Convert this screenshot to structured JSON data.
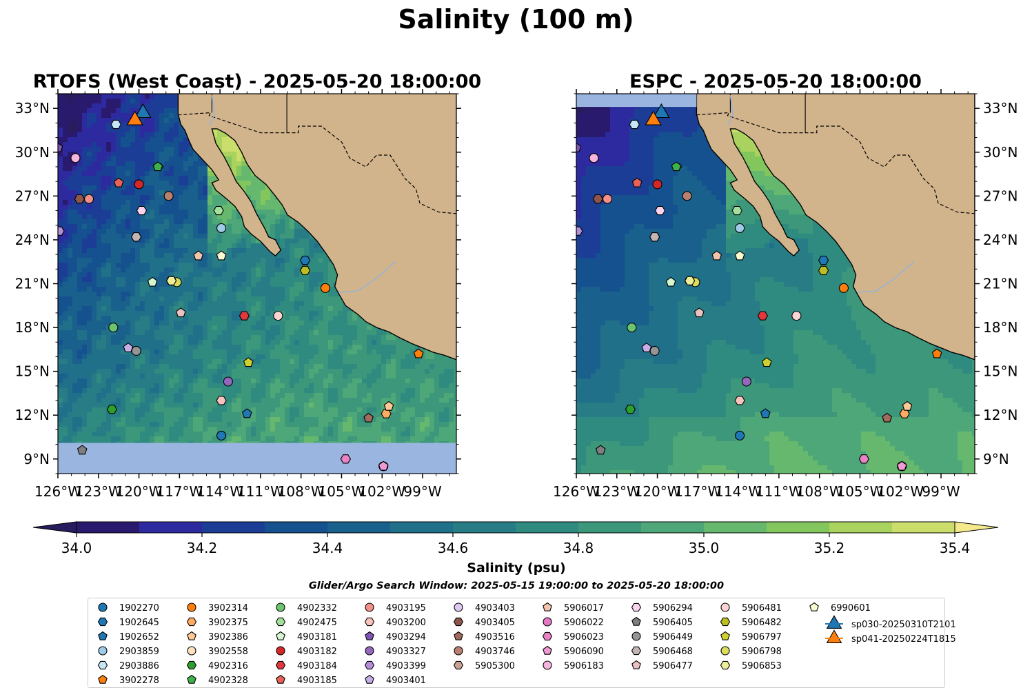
{
  "figure": {
    "suptitle": "Salinity (100 m)",
    "search_window": "Glider/Argo Search Window: 2025-05-15 19:00:00 to 2025-05-20 18:00:00"
  },
  "chart_data": [
    {
      "type": "heatmap",
      "title": "RTOFS (West Coast) - 2025-05-20 18:00:00",
      "xlabel": "",
      "ylabel": "",
      "xlim": [
        -126,
        -96.5
      ],
      "ylim": [
        8,
        34
      ],
      "x_ticks": [
        "126°W",
        "123°W",
        "120°W",
        "117°W",
        "114°W",
        "111°W",
        "108°W",
        "105°W",
        "102°W",
        "99°W"
      ],
      "y_ticks": [
        "9°N",
        "12°N",
        "15°N",
        "18°N",
        "21°N",
        "24°N",
        "27°N",
        "30°N",
        "33°N"
      ],
      "y_tick_side": "left",
      "no_data_band_lat_below": 10.1
    },
    {
      "type": "heatmap",
      "title": "ESPC - 2025-05-20 18:00:00",
      "xlabel": "",
      "ylabel": "",
      "xlim": [
        -126,
        -96.5
      ],
      "ylim": [
        8,
        34
      ],
      "x_ticks": [
        "126°W",
        "123°W",
        "120°W",
        "117°W",
        "114°W",
        "111°W",
        "108°W",
        "105°W",
        "102°W",
        "99°W"
      ],
      "y_ticks": [
        "9°N",
        "12°N",
        "15°N",
        "18°N",
        "21°N",
        "24°N",
        "27°N",
        "30°N",
        "33°N"
      ],
      "y_tick_side": "right",
      "no_data_band_lat_above": 33.1
    }
  ],
  "colorbar": {
    "label": "Salinity (psu)",
    "range": [
      34.0,
      35.4
    ],
    "extend": "both",
    "tick_labels": [
      "34.0",
      "34.2",
      "34.4",
      "34.6",
      "34.8",
      "35.0",
      "35.2",
      "35.4"
    ],
    "colors": [
      "#2a1a6e",
      "#2d2aa0",
      "#1c3d95",
      "#16518f",
      "#1a608c",
      "#21708a",
      "#287c86",
      "#2f8a80",
      "#3c977b",
      "#4ea778",
      "#66b86e",
      "#84c65e",
      "#a9d25e",
      "#cbde6c"
    ],
    "under_color": "#281b5e",
    "over_color": "#f4ea8c"
  },
  "map_colors": {
    "land": "#d2b48c",
    "no_data": "#9ab6e0",
    "coast": "#000000"
  },
  "legend": {
    "entries": [
      {
        "label": "1902270",
        "marker": "circle",
        "color": "#1f77b4"
      },
      {
        "label": "1902645",
        "marker": "hexagon",
        "color": "#1f77b4"
      },
      {
        "label": "1902652",
        "marker": "pentagon",
        "color": "#1f77b4"
      },
      {
        "label": "2903859",
        "marker": "circle",
        "color": "#9fcbe8"
      },
      {
        "label": "2903886",
        "marker": "hexagon",
        "color": "#c6e6f6"
      },
      {
        "label": "3902278",
        "marker": "pentagon",
        "color": "#ff7f0e"
      },
      {
        "label": "3902314",
        "marker": "circle",
        "color": "#ff7f0e"
      },
      {
        "label": "3902375",
        "marker": "hexagon",
        "color": "#ffac62"
      },
      {
        "label": "3902386",
        "marker": "pentagon",
        "color": "#ffc995"
      },
      {
        "label": "3902558",
        "marker": "circle",
        "color": "#ffe0c0"
      },
      {
        "label": "4902316",
        "marker": "hexagon",
        "color": "#2ca02c"
      },
      {
        "label": "4902328",
        "marker": "pentagon",
        "color": "#3fb14a"
      },
      {
        "label": "4902332",
        "marker": "circle",
        "color": "#6cc46f"
      },
      {
        "label": "4902475",
        "marker": "hexagon",
        "color": "#a3e09e"
      },
      {
        "label": "4903181",
        "marker": "pentagon",
        "color": "#d6f6cf"
      },
      {
        "label": "4903182",
        "marker": "circle",
        "color": "#d62728"
      },
      {
        "label": "4903184",
        "marker": "hexagon",
        "color": "#e0383c"
      },
      {
        "label": "4903185",
        "marker": "pentagon",
        "color": "#e8625a"
      },
      {
        "label": "4903195",
        "marker": "circle",
        "color": "#f4908a"
      },
      {
        "label": "4903200",
        "marker": "hexagon",
        "color": "#f9c3bd"
      },
      {
        "label": "4903294",
        "marker": "pentagon",
        "color": "#7f55b5"
      },
      {
        "label": "4903327",
        "marker": "circle",
        "color": "#9467bd"
      },
      {
        "label": "4903399",
        "marker": "hexagon",
        "color": "#b28fd6"
      },
      {
        "label": "4903401",
        "marker": "pentagon",
        "color": "#c7aee6"
      },
      {
        "label": "4903403",
        "marker": "circle",
        "color": "#dcc8f0"
      },
      {
        "label": "4903405",
        "marker": "hexagon",
        "color": "#8c564b"
      },
      {
        "label": "4903516",
        "marker": "pentagon",
        "color": "#a06a5c"
      },
      {
        "label": "4903746",
        "marker": "circle",
        "color": "#b9806f"
      },
      {
        "label": "5905300",
        "marker": "hexagon",
        "color": "#c9a195"
      },
      {
        "label": "5906017",
        "marker": "pentagon",
        "color": "#f2c4ad"
      },
      {
        "label": "5906022",
        "marker": "circle",
        "color": "#e377c2"
      },
      {
        "label": "5906023",
        "marker": "hexagon",
        "color": "#ea82c6"
      },
      {
        "label": "5906090",
        "marker": "pentagon",
        "color": "#ef9ad6"
      },
      {
        "label": "5906183",
        "marker": "circle",
        "color": "#f5b5df"
      },
      {
        "label": "5906294",
        "marker": "hexagon",
        "color": "#fad3ec"
      },
      {
        "label": "5906405",
        "marker": "pentagon",
        "color": "#7f7f7f"
      },
      {
        "label": "5906449",
        "marker": "circle",
        "color": "#959595"
      },
      {
        "label": "5906468",
        "marker": "hexagon",
        "color": "#c4b5b5"
      },
      {
        "label": "5906477",
        "marker": "pentagon",
        "color": "#ebc2c2"
      },
      {
        "label": "5906481",
        "marker": "circle",
        "color": "#fcd4d4"
      },
      {
        "label": "5906482",
        "marker": "hexagon",
        "color": "#bcbd22"
      },
      {
        "label": "5906797",
        "marker": "pentagon",
        "color": "#cfd02e"
      },
      {
        "label": "5906798",
        "marker": "circle",
        "color": "#dbdb5d"
      },
      {
        "label": "5906853",
        "marker": "hexagon",
        "color": "#eeee99"
      },
      {
        "label": "6990601",
        "marker": "pentagon",
        "color": "#fbfbd2"
      },
      {
        "label": "sp030-20250310T2101",
        "marker": "triangle",
        "color": "#1f77b4"
      },
      {
        "label": "sp041-20250224T1815",
        "marker": "triangle",
        "color": "#ff7f0e"
      }
    ]
  },
  "floats": [
    {
      "id": "1902270",
      "lon": -113.9,
      "lat": 10.6
    },
    {
      "id": "1902645",
      "lon": -107.7,
      "lat": 22.6
    },
    {
      "id": "1902652",
      "lon": -112.0,
      "lat": 12.1
    },
    {
      "id": "2903859",
      "lon": -113.9,
      "lat": 24.8
    },
    {
      "id": "2903886",
      "lon": -121.7,
      "lat": 31.9
    },
    {
      "id": "3902278",
      "lon": -99.3,
      "lat": 16.2
    },
    {
      "id": "3902314",
      "lon": -106.2,
      "lat": 20.7
    },
    {
      "id": "3902375",
      "lon": -101.7,
      "lat": 12.1
    },
    {
      "id": "3902386",
      "lon": -101.5,
      "lat": 12.6
    },
    {
      "id": "3902558",
      "lon": -117.6,
      "lat": 21.2
    },
    {
      "id": "4902316",
      "lon": -122.0,
      "lat": 12.4
    },
    {
      "id": "4902328",
      "lon": -118.6,
      "lat": 29.0
    },
    {
      "id": "4902332",
      "lon": -121.9,
      "lat": 18.0
    },
    {
      "id": "4902475",
      "lon": -114.1,
      "lat": 26.0
    },
    {
      "id": "4903181",
      "lon": -119.0,
      "lat": 21.1
    },
    {
      "id": "4903182",
      "lon": -120.0,
      "lat": 27.8
    },
    {
      "id": "4903184",
      "lon": -112.2,
      "lat": 18.8
    },
    {
      "id": "4903185",
      "lon": -121.5,
      "lat": 27.9
    },
    {
      "id": "4903195",
      "lon": -123.7,
      "lat": 26.8
    },
    {
      "id": "4903200",
      "lon": -113.9,
      "lat": 13.0
    },
    {
      "id": "4903294",
      "lon": -126.0,
      "lat": 30.3
    },
    {
      "id": "4903327",
      "lon": -113.4,
      "lat": 14.3
    },
    {
      "id": "4903399",
      "lon": -125.9,
      "lat": 24.6
    },
    {
      "id": "4903401",
      "lon": -120.8,
      "lat": 16.6
    },
    {
      "id": "4903403",
      "lon": -124.7,
      "lat": 29.6
    },
    {
      "id": "4903405",
      "lon": -124.4,
      "lat": 26.8
    },
    {
      "id": "4903516",
      "lon": -103.0,
      "lat": 11.8
    },
    {
      "id": "4903746",
      "lon": -117.8,
      "lat": 27.0
    },
    {
      "id": "5905300",
      "lon": -120.2,
      "lat": 24.2
    },
    {
      "id": "5906017",
      "lon": -115.6,
      "lat": 22.9
    },
    {
      "id": "5906022",
      "lon": -101.9,
      "lat": 8.5
    },
    {
      "id": "5906023",
      "lon": -104.7,
      "lat": 9.0
    },
    {
      "id": "5906090",
      "lon": -101.9,
      "lat": 8.5
    },
    {
      "id": "5906183",
      "lon": -124.7,
      "lat": 29.6
    },
    {
      "id": "5906294",
      "lon": -119.8,
      "lat": 26.0
    },
    {
      "id": "5906405",
      "lon": -124.2,
      "lat": 9.6
    },
    {
      "id": "5906449",
      "lon": -120.2,
      "lat": 16.4
    },
    {
      "id": "5906468",
      "lon": -120.2,
      "lat": 24.2
    },
    {
      "id": "5906477",
      "lon": -116.9,
      "lat": 19.0
    },
    {
      "id": "5906481",
      "lon": -109.7,
      "lat": 18.8
    },
    {
      "id": "5906482",
      "lon": -107.7,
      "lat": 21.9
    },
    {
      "id": "5906797",
      "lon": -111.9,
      "lat": 15.6
    },
    {
      "id": "5906798",
      "lon": -117.2,
      "lat": 21.1
    },
    {
      "id": "5906853",
      "lon": -117.6,
      "lat": 21.2
    },
    {
      "id": "6990601",
      "lon": -113.9,
      "lat": 22.9
    }
  ],
  "gliders": [
    {
      "id": "sp030-20250310T2101",
      "lon": -119.7,
      "lat": 32.8
    },
    {
      "id": "sp041-20250224T1815",
      "lon": -120.3,
      "lat": 32.3
    }
  ]
}
